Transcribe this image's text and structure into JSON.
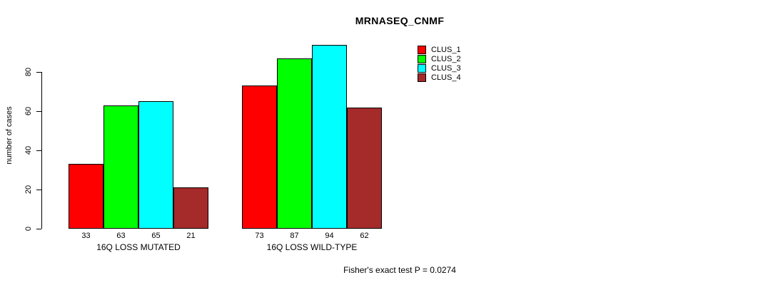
{
  "chart_data": {
    "type": "bar",
    "title": "MRNASEQ_CNMF",
    "ylabel": "number of cases",
    "xlabel": "",
    "groups": [
      "16Q LOSS MUTATED",
      "16Q LOSS WILD-TYPE"
    ],
    "series": [
      {
        "name": "CLUS_1",
        "color": "#ff0000",
        "values": [
          33,
          73
        ]
      },
      {
        "name": "CLUS_2",
        "color": "#00ff00",
        "values": [
          63,
          87
        ]
      },
      {
        "name": "CLUS_3",
        "color": "#00ffff",
        "values": [
          65,
          94
        ]
      },
      {
        "name": "CLUS_4",
        "color": "#a52a2a",
        "values": [
          21,
          62
        ]
      }
    ],
    "yticks": [
      0,
      20,
      40,
      60,
      80
    ],
    "ylim": [
      0,
      96
    ],
    "grid": false,
    "bar_value_labels": true,
    "legend_position": "top-right",
    "annotation": "Fisher's exact test P = 0.0274"
  },
  "colors": {
    "axis": "#000000",
    "text": "#000000",
    "background": "#ffffff"
  }
}
